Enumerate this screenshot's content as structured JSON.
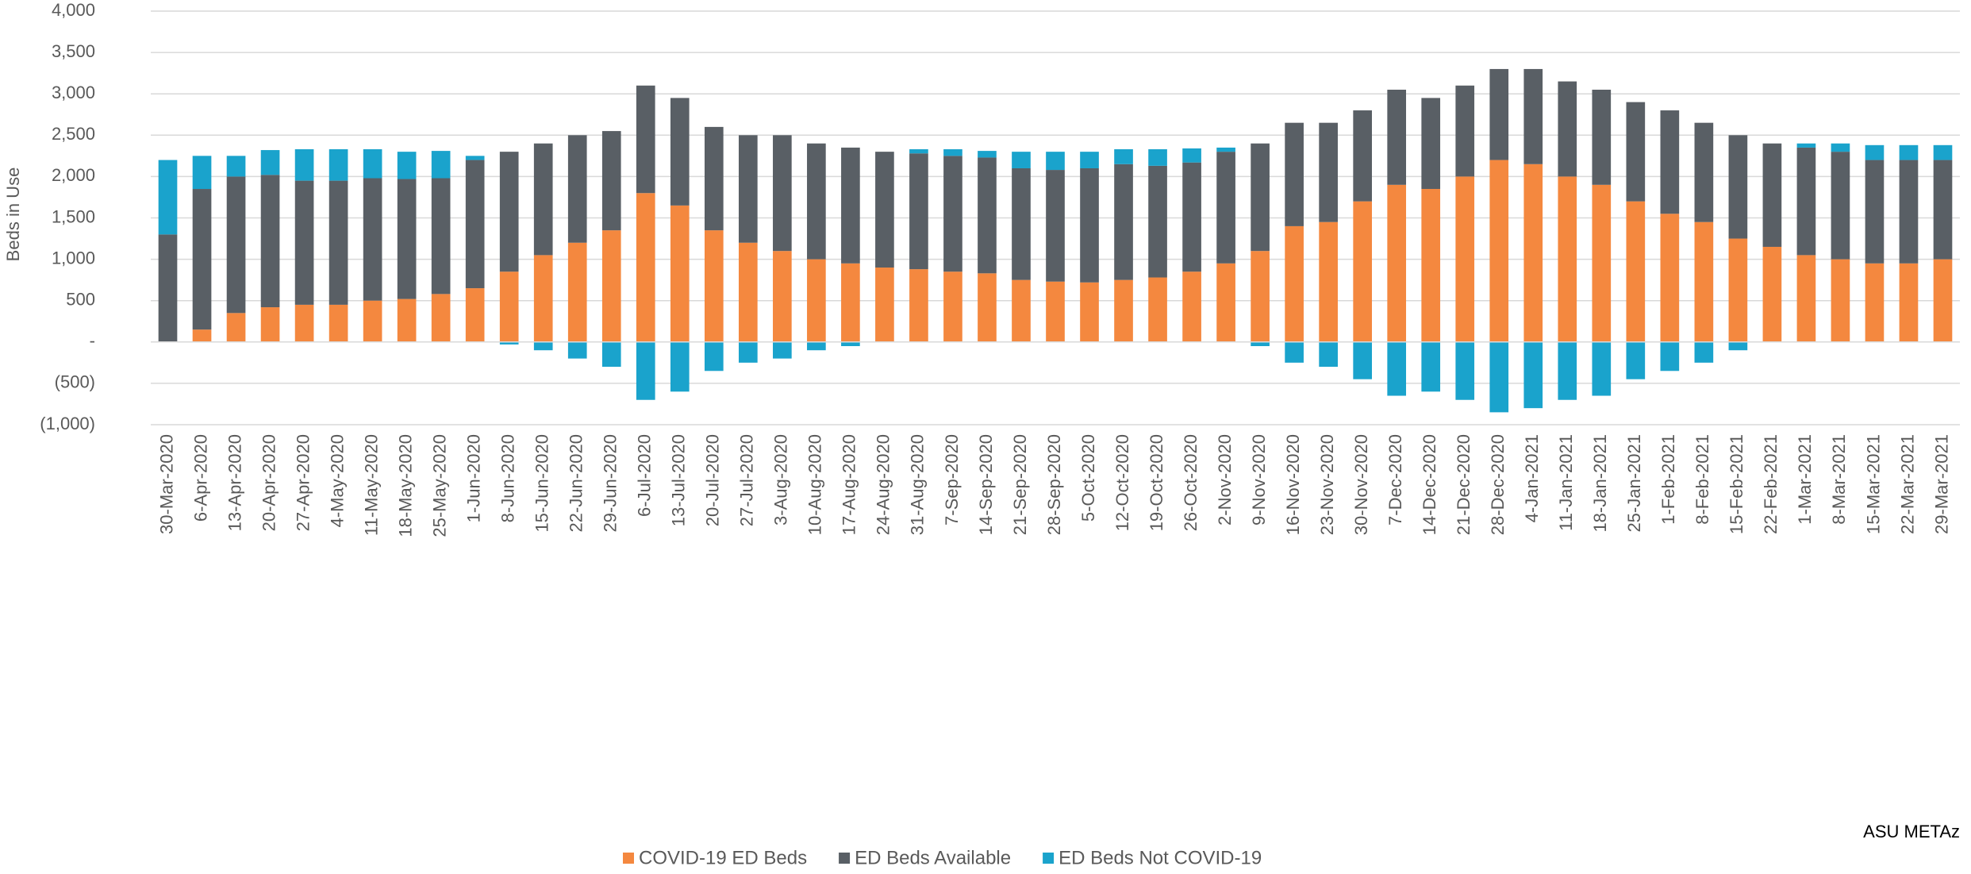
{
  "chart_data": {
    "type": "bar",
    "stacked": true,
    "y_label": "Beds in Use",
    "annotation": "ASU METAz",
    "categories": [
      "30-Mar-2020",
      "6-Apr-2020",
      "13-Apr-2020",
      "20-Apr-2020",
      "27-Apr-2020",
      "4-May-2020",
      "11-May-2020",
      "18-May-2020",
      "25-May-2020",
      "1-Jun-2020",
      "8-Jun-2020",
      "15-Jun-2020",
      "22-Jun-2020",
      "29-Jun-2020",
      "6-Jul-2020",
      "13-Jul-2020",
      "20-Jul-2020",
      "27-Jul-2020",
      "3-Aug-2020",
      "10-Aug-2020",
      "17-Aug-2020",
      "24-Aug-2020",
      "31-Aug-2020",
      "7-Sep-2020",
      "14-Sep-2020",
      "21-Sep-2020",
      "28-Sep-2020",
      "5-Oct-2020",
      "12-Oct-2020",
      "19-Oct-2020",
      "26-Oct-2020",
      "2-Nov-2020",
      "9-Nov-2020",
      "16-Nov-2020",
      "23-Nov-2020",
      "30-Nov-2020",
      "7-Dec-2020",
      "14-Dec-2020",
      "21-Dec-2020",
      "28-Dec-2020",
      "4-Jan-2021",
      "11-Jan-2021",
      "18-Jan-2021",
      "25-Jan-2021",
      "1-Feb-2021",
      "8-Feb-2021",
      "15-Feb-2021",
      "22-Feb-2021",
      "1-Mar-2021",
      "8-Mar-2021",
      "15-Mar-2021",
      "22-Mar-2021",
      "29-Mar-2021"
    ],
    "series": [
      {
        "name": "COVID-19 ED Beds",
        "color": "#f4883f",
        "values": [
          0,
          150,
          350,
          420,
          450,
          450,
          500,
          520,
          580,
          650,
          850,
          1050,
          1200,
          1350,
          1800,
          1650,
          1350,
          1200,
          1100,
          1000,
          950,
          900,
          880,
          850,
          830,
          750,
          730,
          720,
          750,
          780,
          850,
          950,
          1100,
          1400,
          1450,
          1700,
          1900,
          1850,
          2000,
          2200,
          2150,
          2000,
          1900,
          1700,
          1550,
          1450,
          1250,
          1150,
          1050,
          1000,
          950,
          950,
          1000
        ]
      },
      {
        "name": "ED Beds Available",
        "color": "#595f65",
        "values": [
          1300,
          1700,
          1650,
          1600,
          1500,
          1500,
          1480,
          1450,
          1400,
          1550,
          1450,
          1350,
          1300,
          1200,
          1300,
          1300,
          1250,
          1300,
          1400,
          1400,
          1400,
          1400,
          1400,
          1400,
          1400,
          1350,
          1350,
          1380,
          1400,
          1350,
          1320,
          1350,
          1300,
          1250,
          1200,
          1100,
          1150,
          1100,
          1100,
          1100,
          1150,
          1150,
          1150,
          1200,
          1250,
          1200,
          1250,
          1250,
          1300,
          1300,
          1250,
          1250,
          1200
        ]
      },
      {
        "name": "ED Beds Not COVID-19",
        "color": "#1aa3cc",
        "values": [
          900,
          400,
          250,
          300,
          380,
          380,
          350,
          330,
          330,
          50,
          -30,
          -100,
          -200,
          -300,
          -700,
          -600,
          -350,
          -250,
          -200,
          -100,
          -50,
          0,
          50,
          80,
          80,
          200,
          220,
          200,
          180,
          200,
          170,
          50,
          -50,
          -250,
          -300,
          -450,
          -650,
          -600,
          -700,
          -850,
          -800,
          -700,
          -650,
          -450,
          -350,
          -250,
          -100,
          0,
          50,
          100,
          180,
          180,
          180
        ]
      }
    ],
    "ylim": [
      -1000,
      4000
    ],
    "yticks": [
      {
        "value": -1000,
        "label": "(1,000)"
      },
      {
        "value": -500,
        "label": "(500)"
      },
      {
        "value": 0,
        "label": "-"
      },
      500,
      {
        "value": 1000,
        "label": "1,000"
      },
      {
        "value": 1500,
        "label": "1,500"
      },
      {
        "value": 2000,
        "label": "2,000"
      },
      {
        "value": 2500,
        "label": "2,500"
      },
      {
        "value": 3000,
        "label": "3,000"
      },
      {
        "value": 3500,
        "label": "3,500"
      },
      {
        "value": 4000,
        "label": "4,000"
      }
    ],
    "grid": true,
    "legend": "bottom"
  }
}
